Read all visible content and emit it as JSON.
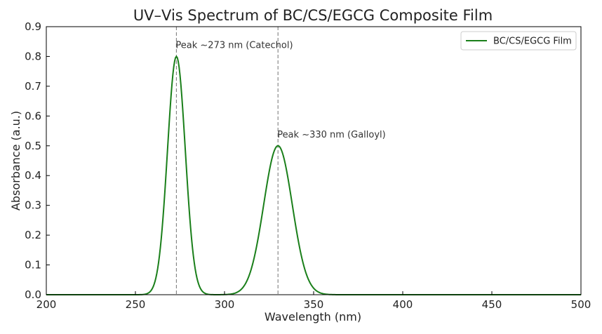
{
  "chart_data": {
    "type": "line",
    "title": "UV–Vis Spectrum of BC/CS/EGCG Composite Film",
    "xlabel": "Wavelength (nm)",
    "ylabel": "Absorbance (a.u.)",
    "xlim": [
      200,
      500
    ],
    "ylim": [
      0,
      0.9
    ],
    "x_ticks": [
      200,
      250,
      300,
      350,
      400,
      450,
      500
    ],
    "x_tick_labels": [
      "200",
      "250",
      "300",
      "350",
      "400",
      "450",
      "500"
    ],
    "y_ticks": [
      0,
      0.1,
      0.2,
      0.3,
      0.4,
      0.5,
      0.6,
      0.7,
      0.8,
      0.9
    ],
    "y_tick_labels": [
      "0.0",
      "0.1",
      "0.2",
      "0.3",
      "0.4",
      "0.5",
      "0.6",
      "0.7",
      "0.8",
      "0.9"
    ],
    "grid": false,
    "legend_position": "top-right",
    "series": [
      {
        "name": "BC/CS/EGCG Film",
        "color": "#1a7f1a",
        "peaks": [
          {
            "center": 273,
            "height": 0.8,
            "sigma": 5
          },
          {
            "center": 330,
            "height": 0.5,
            "sigma": 8
          }
        ]
      }
    ],
    "annotations": [
      {
        "text": "Peak ~273 nm (Catechol)",
        "x": 273,
        "y": 0.8
      },
      {
        "text": "Peak ~330 nm (Galloyl)",
        "x": 330,
        "y": 0.5
      }
    ],
    "vlines": [
      {
        "x": 273,
        "style": "dashed",
        "color": "#808080"
      },
      {
        "x": 330,
        "style": "dashed",
        "color": "#808080"
      }
    ]
  }
}
